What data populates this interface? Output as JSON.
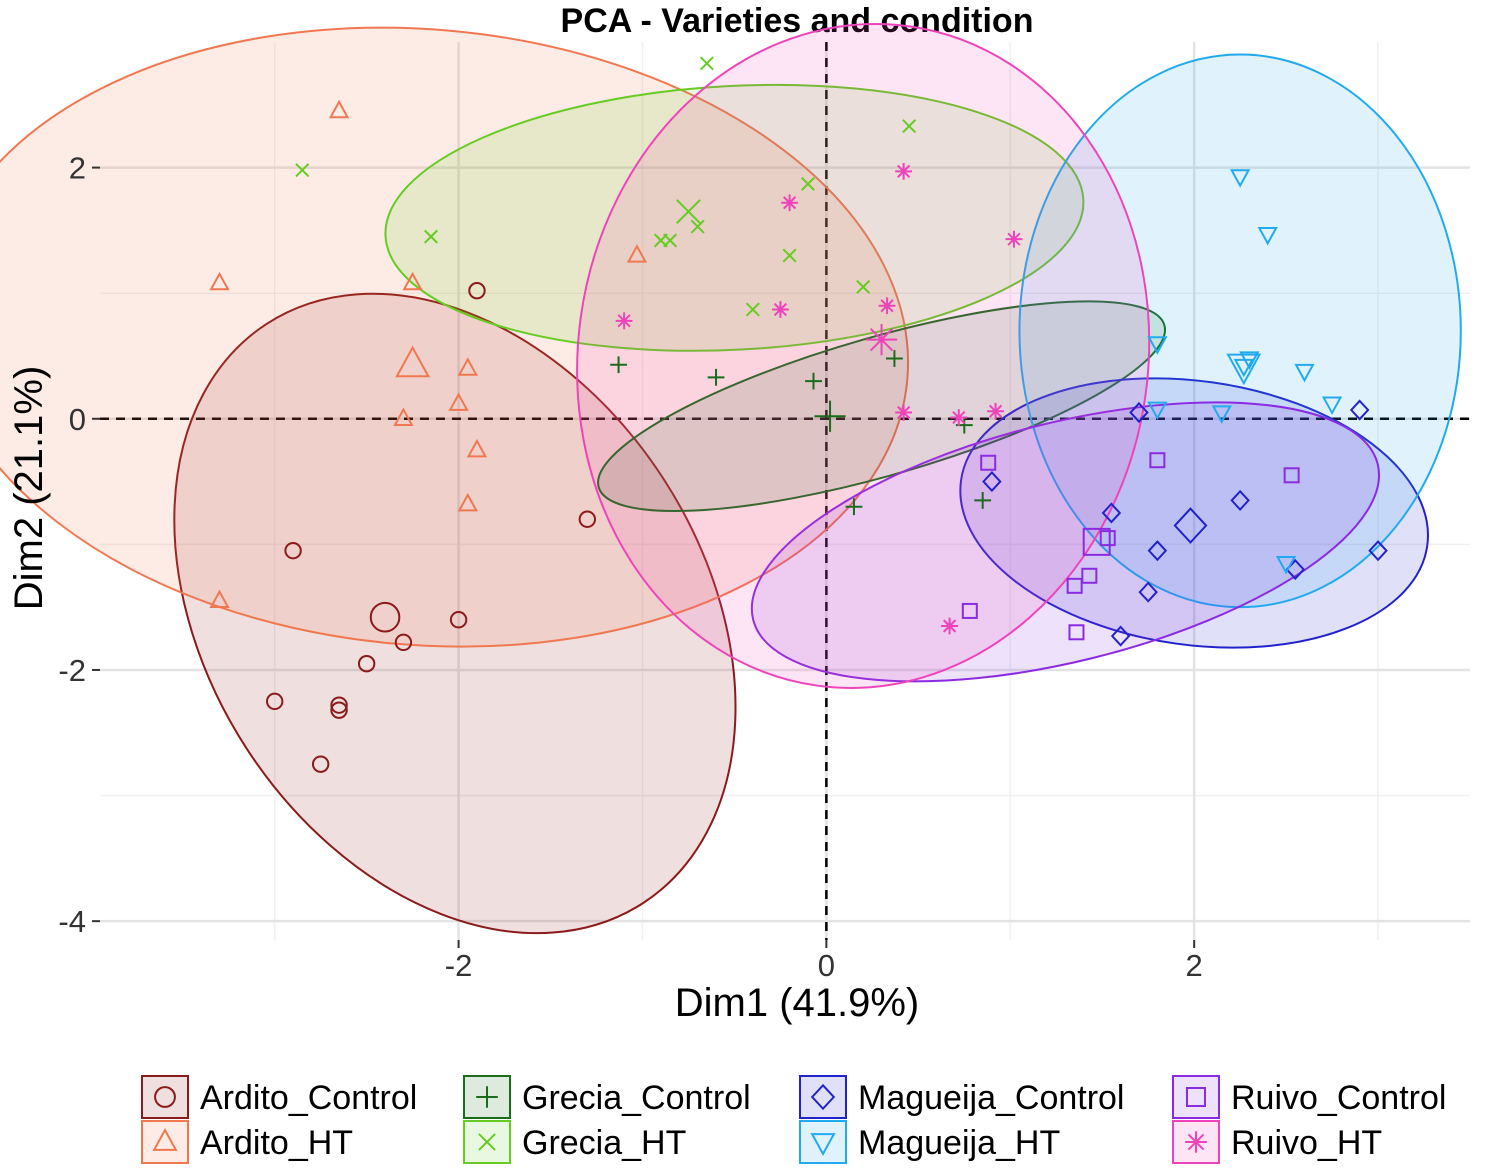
{
  "chart_data": {
    "type": "scatter",
    "title": "PCA - Varieties and condition",
    "xlabel": "Dim1 (41.9%)",
    "ylabel": "Dim2 (21.1%)",
    "xlim": [
      -3.95,
      3.5
    ],
    "ylim": [
      -4.15,
      3.0
    ],
    "xticks": [
      -2,
      0,
      2
    ],
    "yticks": [
      -4,
      -2,
      0,
      2
    ],
    "xtick_labels": [
      "-2",
      "0",
      "2"
    ],
    "ytick_labels": [
      "-4",
      "-2",
      "0",
      "2"
    ],
    "grid": true,
    "legend_position": "bottom",
    "series": [
      {
        "name": "Ardito_Control",
        "color": "#8B1A1A",
        "marker": "circle",
        "points": [
          [
            -1.9,
            1.02
          ],
          [
            -1.3,
            -0.8
          ],
          [
            -2.9,
            -1.05
          ],
          [
            -2,
            -1.6
          ],
          [
            -2.3,
            -1.78
          ],
          [
            -2.5,
            -1.95
          ],
          [
            -3.0,
            -2.25
          ],
          [
            -2.65,
            -2.28
          ],
          [
            -2.65,
            -2.32
          ],
          [
            -2.75,
            -2.75
          ]
        ],
        "centroid": [
          -2.4,
          -1.58
        ],
        "ellipse": {
          "cx": -2.02,
          "cy": -1.55,
          "rx": 1.35,
          "ry": 2.75,
          "angle": 33
        }
      },
      {
        "name": "Ardito_HT",
        "color": "#F07850",
        "marker": "triangle",
        "points": [
          [
            -2.65,
            2.45
          ],
          [
            -3.3,
            1.08
          ],
          [
            -2.25,
            1.08
          ],
          [
            -1.03,
            1.3
          ],
          [
            -1.95,
            0.4
          ],
          [
            -2,
            0.12
          ],
          [
            -2.3,
            0
          ],
          [
            -1.9,
            -0.25
          ],
          [
            -1.95,
            -0.68
          ],
          [
            -3.3,
            -1.45
          ]
        ],
        "centroid": [
          -2.25,
          0.43
        ],
        "ellipse": {
          "cx": -2.2,
          "cy": 0.65,
          "rx": 2.65,
          "ry": 2.45,
          "angle": -5
        }
      },
      {
        "name": "Grecia_Control",
        "color": "#1A6B1A",
        "marker": "plus",
        "points": [
          [
            -1.13,
            0.43
          ],
          [
            -0.6,
            0.33
          ],
          [
            -0.07,
            0.3
          ],
          [
            0.37,
            0.48
          ],
          [
            0.15,
            -0.7
          ],
          [
            0.75,
            -0.05
          ],
          [
            0.85,
            -0.65
          ]
        ],
        "centroid": [
          0.02,
          0.02
        ],
        "ellipse": {
          "cx": 0.3,
          "cy": 0.1,
          "rx": 1.6,
          "ry": 0.55,
          "angle": 16
        }
      },
      {
        "name": "Grecia_HT",
        "color": "#66CC22",
        "marker": "x",
        "points": [
          [
            -2.85,
            1.98
          ],
          [
            -2.15,
            1.45
          ],
          [
            -0.65,
            2.83
          ],
          [
            -0.85,
            1.42
          ],
          [
            -0.9,
            1.42
          ],
          [
            -0.7,
            1.53
          ],
          [
            -0.4,
            0.87
          ],
          [
            -0.1,
            1.87
          ],
          [
            -0.2,
            1.3
          ],
          [
            0.2,
            1.05
          ],
          [
            0.45,
            2.33
          ]
        ],
        "centroid": [
          -0.75,
          1.65
        ],
        "ellipse": {
          "cx": -0.5,
          "cy": 1.6,
          "rx": 1.9,
          "ry": 1.05,
          "angle": 3
        }
      },
      {
        "name": "Magueija_Control",
        "color": "#2222CC",
        "marker": "diamond",
        "points": [
          [
            0.9,
            -0.5
          ],
          [
            1.7,
            0.05
          ],
          [
            1.55,
            -0.75
          ],
          [
            1.8,
            -1.05
          ],
          [
            1.75,
            -1.38
          ],
          [
            1.6,
            -1.73
          ],
          [
            2.25,
            -0.65
          ],
          [
            2.55,
            -1.2
          ],
          [
            2.9,
            0.07
          ],
          [
            3.0,
            -1.05
          ]
        ],
        "centroid": [
          1.98,
          -0.85
        ],
        "ellipse": {
          "cx": 2.0,
          "cy": -0.75,
          "rx": 1.28,
          "ry": 1.05,
          "angle": -8
        }
      },
      {
        "name": "Magueija_HT",
        "color": "#22AAEE",
        "marker": "triangle-down",
        "points": [
          [
            2.25,
            1.93
          ],
          [
            2.4,
            1.47
          ],
          [
            1.8,
            0.6
          ],
          [
            2.3,
            0.48
          ],
          [
            2.27,
            0.42
          ],
          [
            2.6,
            0.38
          ],
          [
            1.8,
            0.08
          ],
          [
            2.15,
            0.05
          ],
          [
            2.75,
            0.12
          ],
          [
            2.5,
            -1.15
          ]
        ],
        "centroid": [
          2.27,
          0.42
        ],
        "ellipse": {
          "cx": 2.25,
          "cy": 0.7,
          "rx": 1.2,
          "ry": 2.2,
          "angle": 0
        }
      },
      {
        "name": "Ruivo_Control",
        "color": "#8A2BE2",
        "marker": "square",
        "points": [
          [
            0.88,
            -0.35
          ],
          [
            1.53,
            -0.95
          ],
          [
            1.8,
            -0.33
          ],
          [
            2.53,
            -0.45
          ],
          [
            1.43,
            -1.25
          ],
          [
            1.35,
            -1.33
          ],
          [
            1.36,
            -1.7
          ],
          [
            0.78,
            -1.53
          ]
        ],
        "centroid": [
          1.47,
          -0.98
        ],
        "ellipse": {
          "cx": 1.3,
          "cy": -0.98,
          "rx": 1.75,
          "ry": 0.95,
          "angle": 14
        }
      },
      {
        "name": "Ruivo_HT",
        "color": "#EE44BB",
        "marker": "asterisk",
        "points": [
          [
            -1.1,
            0.78
          ],
          [
            -0.2,
            1.72
          ],
          [
            0.42,
            1.97
          ],
          [
            1.02,
            1.43
          ],
          [
            -0.25,
            0.87
          ],
          [
            0.33,
            0.9
          ],
          [
            0.42,
            0.05
          ],
          [
            0.72,
            0.01
          ],
          [
            0.92,
            0.06
          ],
          [
            0.67,
            -1.65
          ]
        ],
        "centroid": [
          0.3,
          0.63
        ],
        "ellipse": {
          "cx": 0.2,
          "cy": 0.5,
          "rx": 1.55,
          "ry": 2.65,
          "angle": -8
        }
      }
    ]
  }
}
